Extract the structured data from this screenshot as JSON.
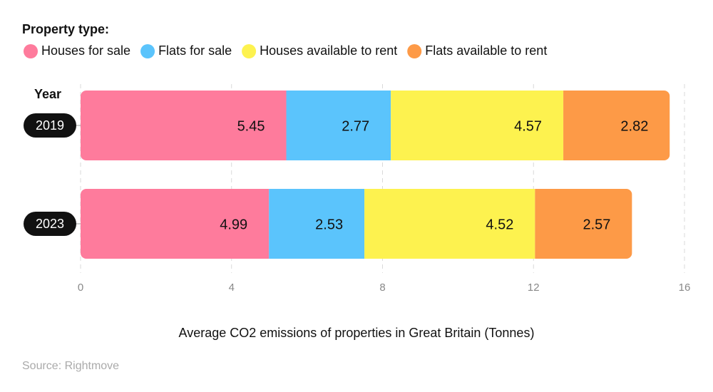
{
  "chart_data": {
    "type": "bar",
    "orientation": "horizontal",
    "stacked": true,
    "legend_title": "Property type:",
    "y_label": "Year",
    "x_label": "Average CO2 emissions of properties in Great Britain (Tonnes)",
    "source": "Source: Rightmove",
    "categories": [
      "2019",
      "2023"
    ],
    "series": [
      {
        "name": "Houses for sale",
        "color": "#fe7b9c",
        "values": [
          5.45,
          4.99
        ]
      },
      {
        "name": "Flats for sale",
        "color": "#5bc4fc",
        "values": [
          2.77,
          2.53
        ]
      },
      {
        "name": "Houses available to rent",
        "color": "#fdf24f",
        "values": [
          4.57,
          4.52
        ]
      },
      {
        "name": "Flats available to rent",
        "color": "#fd9a47",
        "values": [
          2.82,
          2.57
        ]
      }
    ],
    "xlim": [
      0,
      16
    ],
    "xticks": [
      0,
      4,
      8,
      12,
      16
    ],
    "grid": true
  }
}
